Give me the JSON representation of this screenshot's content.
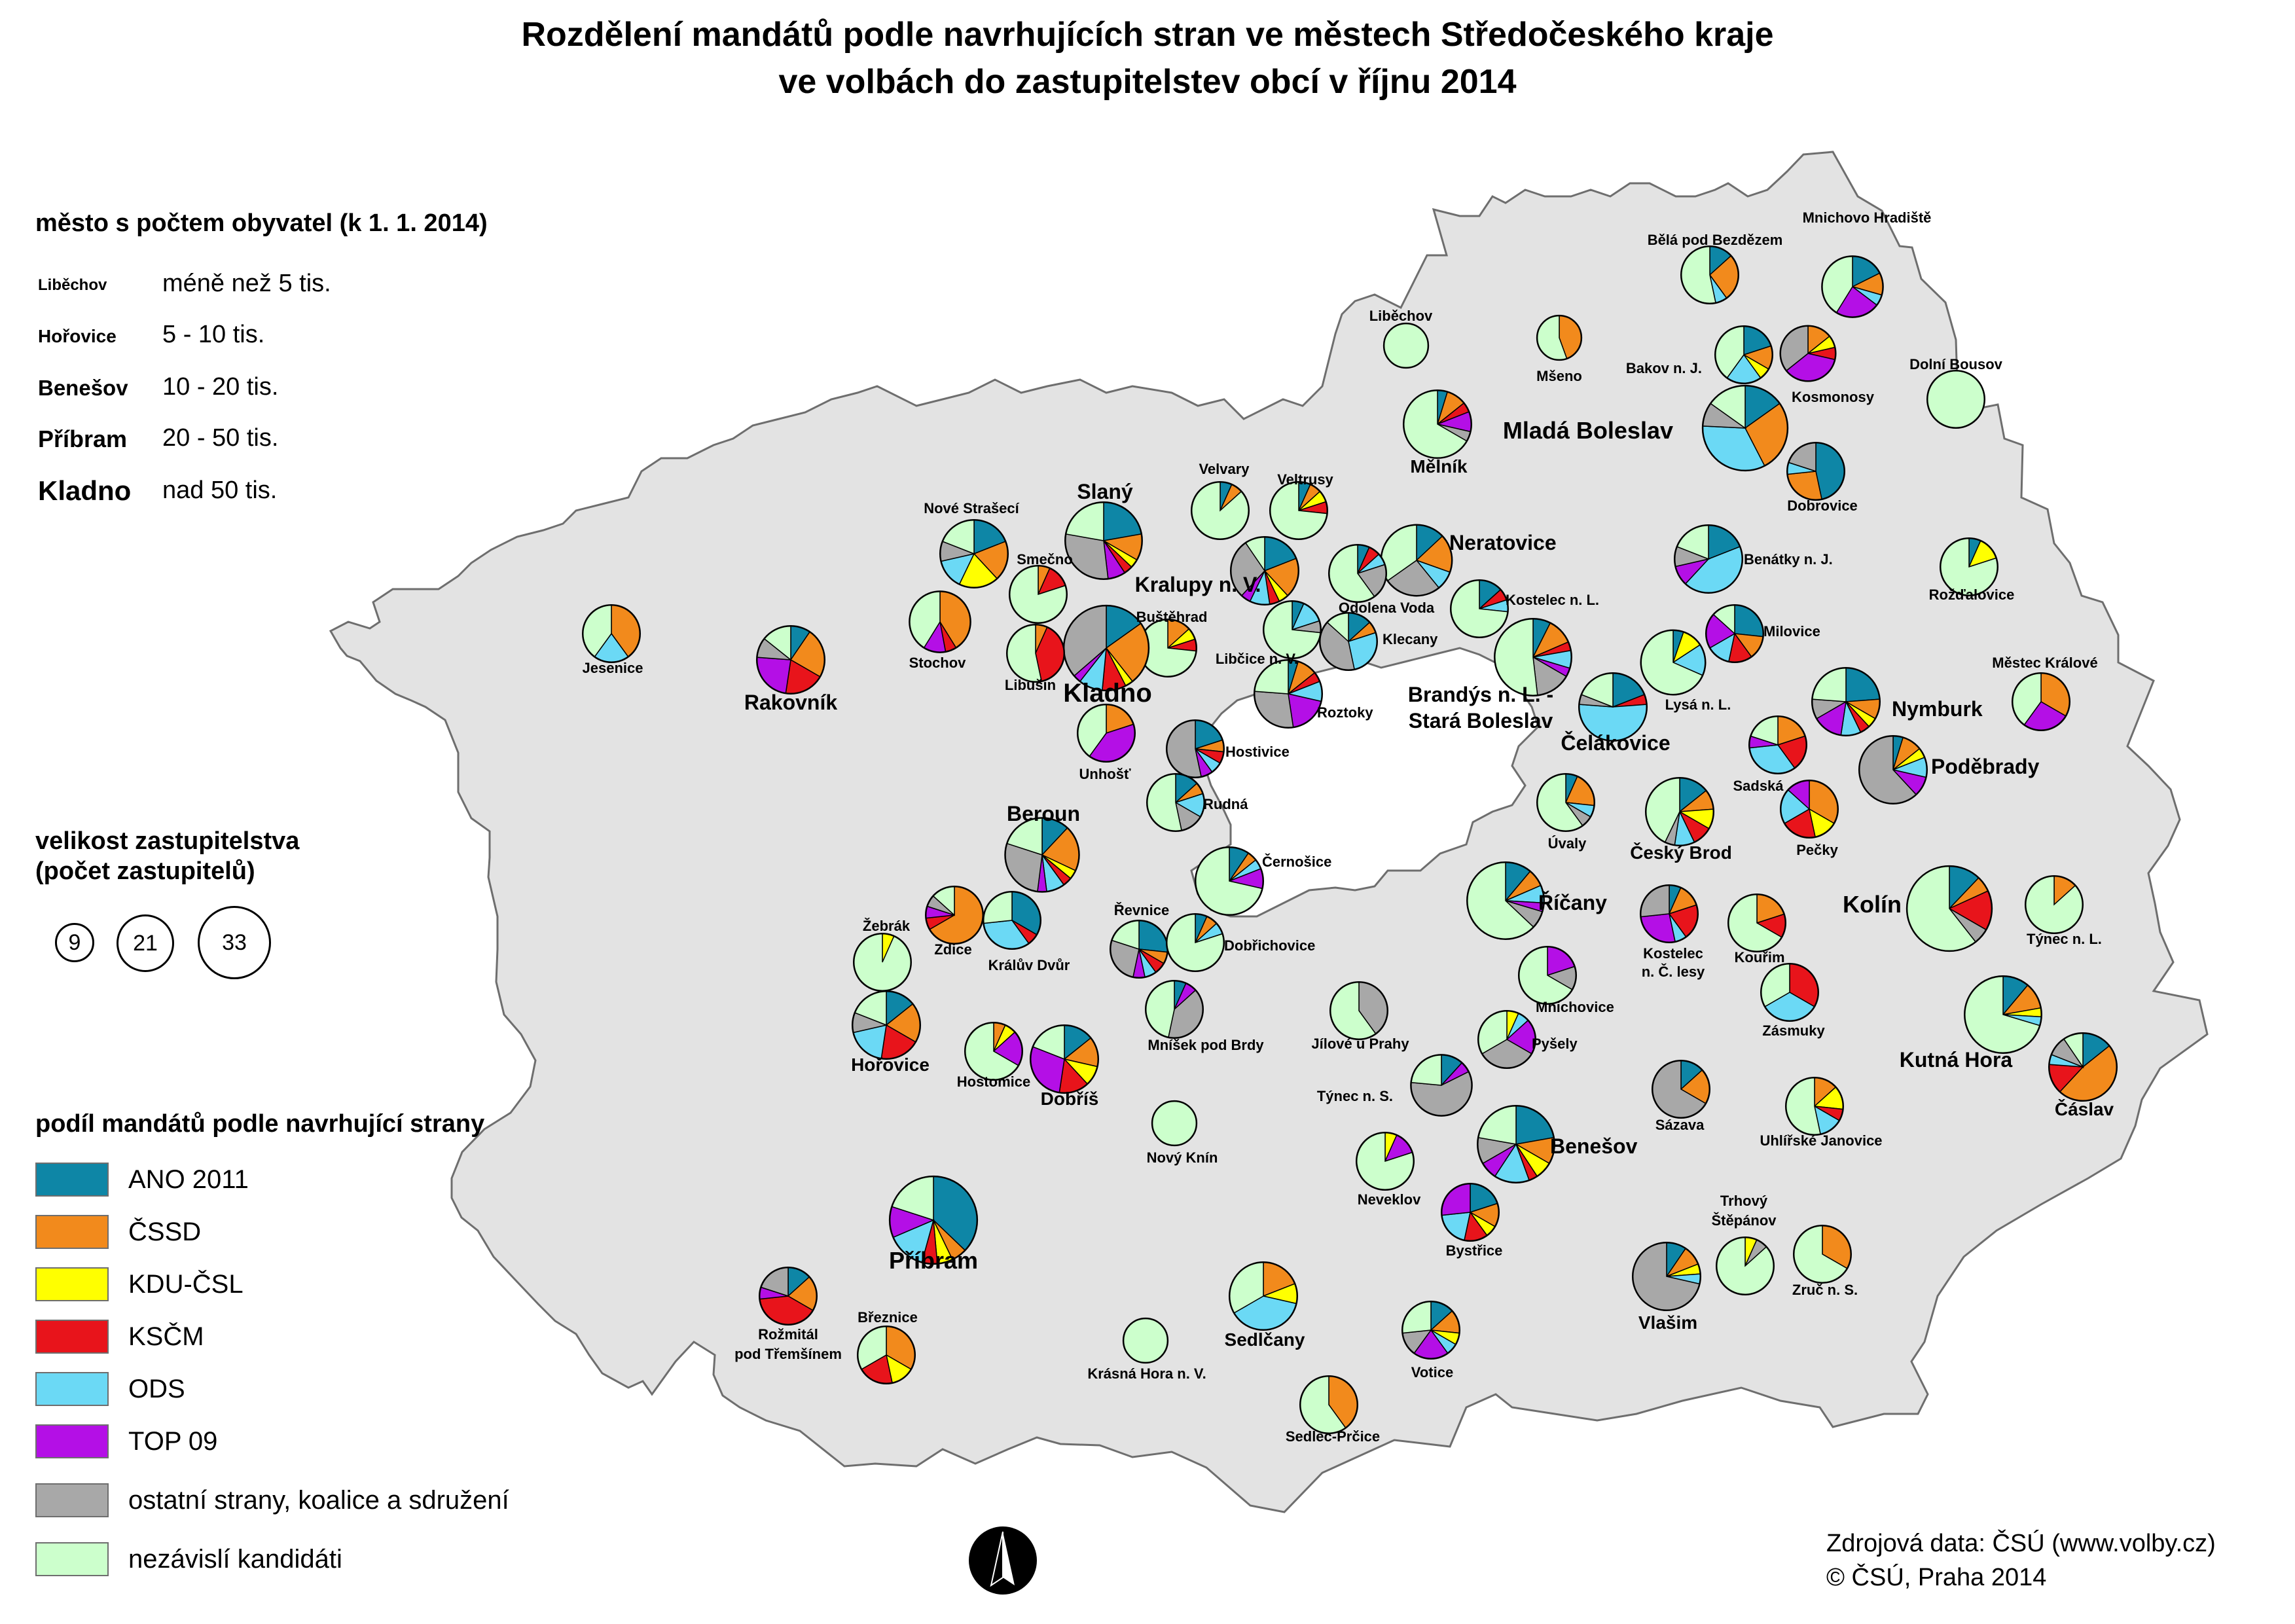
{
  "title": {
    "line1": "Rozdělení mandátů podle navrhujících stran ve městech Středočeského kraje",
    "line2": "ve volbách do zastupitelstev obcí v říjnu 2014"
  },
  "population_legend": {
    "heading": "město s počtem obyvatel (k 1. 1. 2014)",
    "tiers": [
      {
        "example": "Liběchov",
        "description": "méně než 5 tis."
      },
      {
        "example": "Hořovice",
        "description": "5 - 10 tis."
      },
      {
        "example": "Benešov",
        "description": "10 - 20 tis."
      },
      {
        "example": "Příbram",
        "description": "20 - 50 tis."
      },
      {
        "example": "Kladno",
        "description": "nad 50 tis."
      }
    ]
  },
  "council_size_legend": {
    "heading_line1": "velikost zastupitelstva",
    "heading_line2": "(počet zastupitelů)",
    "sizes": [
      "9",
      "21",
      "33"
    ]
  },
  "party_legend": {
    "heading": "podíl mandátů podle navrhující strany",
    "parties": [
      {
        "name": "ANO 2011",
        "color": "#0E86A6"
      },
      {
        "name": "ČSSD",
        "color": "#F28A1C"
      },
      {
        "name": "KDU-ČSL",
        "color": "#FFFF00"
      },
      {
        "name": "KSČM",
        "color": "#E8141B"
      },
      {
        "name": "ODS",
        "color": "#6BD9F5"
      },
      {
        "name": "TOP 09",
        "color": "#B40FE6"
      },
      {
        "name": "ostatní strany, koalice a sdružení",
        "color": "#A8A8A8"
      },
      {
        "name": "nezávislí kandidáti",
        "color": "#CCFFCC"
      }
    ]
  },
  "source": {
    "line1": "Zdrojová data: ČSÚ (www.volby.cz)",
    "line2": "© ČSÚ, Praha 2014"
  },
  "colors": {
    "region_fill": "#E3E3E3",
    "region_outline": "#6E6E6E",
    "prague_fill": "#FFFFFF"
  },
  "towns": [
    {
      "name": "Bělá pod Bezdězem",
      "tier": 1,
      "shares": [
        2,
        4,
        0,
        0,
        1,
        0,
        0,
        8
      ]
    },
    {
      "name": "Mnichovo Hradiště",
      "tier": 1,
      "shares": [
        3,
        2,
        0,
        0,
        1,
        4,
        0,
        7
      ]
    },
    {
      "name": "Liběchov",
      "tier": 1,
      "shares": [
        0,
        0,
        0,
        0,
        0,
        0,
        0,
        9
      ]
    },
    {
      "name": "Mšeno",
      "tier": 1,
      "shares": [
        0,
        4,
        0,
        0,
        0,
        0,
        0,
        5
      ]
    },
    {
      "name": "Bakov n. J.",
      "tier": 1,
      "shares": [
        3,
        2,
        1,
        0,
        3,
        0,
        0,
        6
      ]
    },
    {
      "name": "Kosmonosy",
      "tier": 1,
      "shares": [
        0,
        2,
        1,
        1,
        0,
        5,
        5,
        0
      ]
    },
    {
      "name": "Dolní Bousov",
      "tier": 1,
      "shares": [
        0,
        0,
        0,
        0,
        0,
        0,
        0,
        15
      ]
    },
    {
      "name": "Mělník",
      "tier": 2,
      "shares": [
        1,
        2,
        0,
        1,
        0,
        2,
        1,
        14
      ]
    },
    {
      "name": "Mladá Boleslav",
      "tier": 4,
      "shares": [
        5,
        9,
        0,
        0,
        11,
        0,
        3,
        5
      ]
    },
    {
      "name": "Dobrovice",
      "tier": 1,
      "shares": [
        7,
        4,
        0,
        0,
        1,
        0,
        3,
        0
      ]
    },
    {
      "name": "Nové Strašecí",
      "tier": 1,
      "shares": [
        4,
        4,
        4,
        0,
        3,
        0,
        2,
        4
      ]
    },
    {
      "name": "Slaný",
      "tier": 3,
      "shares": [
        6,
        3,
        1,
        1,
        0,
        2,
        8,
        6
      ]
    },
    {
      "name": "Velvary",
      "tier": 1,
      "shares": [
        1,
        1,
        0,
        0,
        0,
        0,
        0,
        13
      ]
    },
    {
      "name": "Veltrusy",
      "tier": 1,
      "shares": [
        1,
        1,
        1,
        1,
        0,
        0,
        0,
        11
      ]
    },
    {
      "name": "Neratovice",
      "tier": 3,
      "shares": [
        3,
        4,
        0,
        0,
        2,
        0,
        6,
        8
      ]
    },
    {
      "name": "Benátky n. J.",
      "tier": 1,
      "shares": [
        4,
        0,
        0,
        0,
        9,
        2,
        2,
        4
      ]
    },
    {
      "name": "Smečno",
      "tier": 1,
      "shares": [
        0,
        1,
        0,
        2,
        0,
        0,
        0,
        12
      ]
    },
    {
      "name": "Kralupy n. V.",
      "tier": 3,
      "shares": [
        4,
        4,
        1,
        1,
        2,
        1,
        6,
        2
      ]
    },
    {
      "name": "Odolena Voda",
      "tier": 1,
      "shares": [
        1,
        0,
        0,
        1,
        1,
        0,
        3,
        9
      ]
    },
    {
      "name": "Kostelec n. L.",
      "tier": 1,
      "shares": [
        2,
        0,
        0,
        1,
        1,
        0,
        0,
        11
      ]
    },
    {
      "name": "Rožďalovice",
      "tier": 1,
      "shares": [
        1,
        0,
        2,
        0,
        0,
        0,
        0,
        12
      ]
    },
    {
      "name": "Jesenice",
      "tier": 1,
      "shares": [
        0,
        6,
        0,
        0,
        3,
        0,
        0,
        6
      ]
    },
    {
      "name": "Rakovník",
      "tier": 3,
      "shares": [
        2,
        5,
        0,
        4,
        0,
        5,
        2,
        3
      ]
    },
    {
      "name": "Stochov",
      "tier": 1,
      "shares": [
        0,
        7,
        0,
        1,
        0,
        2,
        0,
        7
      ]
    },
    {
      "name": "Buštěhrad",
      "tier": 1,
      "shares": [
        0,
        2,
        1,
        1,
        0,
        0,
        0,
        11
      ]
    },
    {
      "name": "Kladno",
      "tier": 5,
      "shares": [
        5,
        8,
        1,
        3,
        3,
        1,
        12,
        0
      ]
    },
    {
      "name": "Libušín",
      "tier": 1,
      "shares": [
        0,
        1,
        0,
        6,
        0,
        0,
        0,
        8
      ]
    },
    {
      "name": "Libčice n. V.",
      "tier": 1,
      "shares": [
        1,
        0,
        0,
        0,
        2,
        0,
        1,
        11
      ]
    },
    {
      "name": "Klecany",
      "tier": 1,
      "shares": [
        2,
        1,
        0,
        0,
        4,
        0,
        6,
        2
      ]
    },
    {
      "name": "Milovice",
      "tier": 1,
      "shares": [
        4,
        2,
        0,
        2,
        2,
        3,
        0,
        2
      ]
    },
    {
      "name": "Městec Králové",
      "tier": 1,
      "shares": [
        0,
        5,
        0,
        0,
        0,
        4,
        0,
        6
      ]
    },
    {
      "name": "Roztoky",
      "tier": 1,
      "shares": [
        1,
        2,
        0,
        1,
        2,
        4,
        6,
        5
      ]
    },
    {
      "name": "Brandýs n. L. - Stará Boleslav",
      "tier": 3,
      "shares": [
        2,
        3,
        0,
        1,
        2,
        1,
        4,
        14
      ]
    },
    {
      "name": "Lysá n. L.",
      "tier": 1,
      "shares": [
        1,
        0,
        2,
        0,
        3,
        0,
        0,
        13
      ]
    },
    {
      "name": "Nymburk",
      "tier": 3,
      "shares": [
        5,
        2,
        1,
        1,
        2,
        3,
        2,
        5
      ]
    },
    {
      "name": "Unhošť",
      "tier": 1,
      "shares": [
        0,
        3,
        0,
        0,
        0,
        6,
        0,
        6
      ]
    },
    {
      "name": "Hostivice",
      "tier": 1,
      "shares": [
        3,
        1,
        0,
        1,
        1,
        1,
        8,
        0
      ]
    },
    {
      "name": "Čelákovice",
      "tier": 3,
      "shares": [
        4,
        0,
        0,
        1,
        11,
        0,
        1,
        4
      ]
    },
    {
      "name": "Sadská",
      "tier": 1,
      "shares": [
        0,
        3,
        0,
        3,
        5,
        1,
        0,
        3
      ]
    },
    {
      "name": "Poděbrady",
      "tier": 3,
      "shares": [
        1,
        2,
        1,
        0,
        2,
        2,
        13,
        0
      ]
    },
    {
      "name": "Rudná",
      "tier": 1,
      "shares": [
        2,
        1,
        0,
        0,
        2,
        0,
        2,
        8
      ]
    },
    {
      "name": "Úvaly",
      "tier": 1,
      "shares": [
        1,
        3,
        0,
        0,
        1,
        0,
        1,
        9
      ]
    },
    {
      "name": "Český Brod",
      "tier": 2,
      "shares": [
        3,
        2,
        2,
        2,
        2,
        0,
        1,
        9
      ]
    },
    {
      "name": "Pečky",
      "tier": 1,
      "shares": [
        0,
        5,
        2,
        3,
        3,
        2,
        0,
        0
      ]
    },
    {
      "name": "Beroun",
      "tier": 3,
      "shares": [
        3,
        5,
        1,
        1,
        2,
        1,
        7,
        5
      ]
    },
    {
      "name": "Černošice",
      "tier": 1,
      "shares": [
        2,
        1,
        0,
        0,
        1,
        2,
        0,
        15
      ]
    },
    {
      "name": "Žebrák",
      "tier": 1,
      "shares": [
        0,
        0,
        1,
        0,
        0,
        0,
        0,
        14
      ]
    },
    {
      "name": "Zdice",
      "tier": 1,
      "shares": [
        0,
        10,
        0,
        1,
        0,
        1,
        1,
        2
      ]
    },
    {
      "name": "Králův Dvůr",
      "tier": 1,
      "shares": [
        5,
        0,
        0,
        1,
        5,
        0,
        0,
        4
      ]
    },
    {
      "name": "Řevnice",
      "tier": 1,
      "shares": [
        4,
        1,
        0,
        1,
        1,
        1,
        4,
        3
      ]
    },
    {
      "name": "Dobřichovice",
      "tier": 1,
      "shares": [
        1,
        1,
        0,
        0,
        1,
        0,
        0,
        12
      ]
    },
    {
      "name": "Říčany",
      "tier": 3,
      "shares": [
        3,
        2,
        0,
        0,
        2,
        1,
        2,
        17
      ]
    },
    {
      "name": "Kostelec n. Č. lesy",
      "tier": 1,
      "shares": [
        1,
        2,
        0,
        3,
        1,
        4,
        4,
        0
      ]
    },
    {
      "name": "Kouřim",
      "tier": 1,
      "shares": [
        0,
        3,
        0,
        2,
        0,
        0,
        0,
        10
      ]
    },
    {
      "name": "Kolín",
      "tier": 4,
      "shares": [
        4,
        2,
        0,
        5,
        0,
        0,
        2,
        20
      ]
    },
    {
      "name": "Týnec n. L.",
      "tier": 1,
      "shares": [
        0,
        2,
        0,
        0,
        0,
        0,
        0,
        13
      ]
    },
    {
      "name": "Mnichovice",
      "tier": 1,
      "shares": [
        0,
        0,
        0,
        0,
        0,
        3,
        2,
        10
      ]
    },
    {
      "name": "Zásmuky",
      "tier": 1,
      "shares": [
        0,
        0,
        0,
        5,
        5,
        0,
        0,
        5
      ]
    },
    {
      "name": "Hořovice",
      "tier": 2,
      "shares": [
        3,
        4,
        0,
        4,
        4,
        0,
        2,
        4
      ]
    },
    {
      "name": "Hostomice",
      "tier": 1,
      "shares": [
        0,
        1,
        1,
        0,
        0,
        3,
        0,
        10
      ]
    },
    {
      "name": "Dobříš",
      "tier": 2,
      "shares": [
        3,
        3,
        2,
        3,
        0,
        6,
        0,
        4
      ]
    },
    {
      "name": "Mníšek pod Brdy",
      "tier": 1,
      "shares": [
        1,
        0,
        0,
        0,
        0,
        1,
        6,
        7
      ]
    },
    {
      "name": "Jílové u Prahy",
      "tier": 1,
      "shares": [
        0,
        0,
        0,
        0,
        0,
        0,
        6,
        9
      ]
    },
    {
      "name": "Pyšely",
      "tier": 1,
      "shares": [
        0,
        0,
        1,
        0,
        1,
        3,
        5,
        5
      ]
    },
    {
      "name": "Týnec n. S.",
      "tier": 1,
      "shares": [
        2,
        0,
        0,
        0,
        0,
        1,
        10,
        4
      ]
    },
    {
      "name": "Sázava",
      "tier": 1,
      "shares": [
        2,
        3,
        0,
        0,
        0,
        0,
        10,
        0
      ]
    },
    {
      "name": "Uhlířské Janovice",
      "tier": 1,
      "shares": [
        0,
        2,
        2,
        1,
        2,
        0,
        0,
        8
      ]
    },
    {
      "name": "Kutná Hora",
      "tier": 3,
      "shares": [
        3,
        3,
        1,
        0,
        1,
        0,
        0,
        19
      ]
    },
    {
      "name": "Čáslav",
      "tier": 2,
      "shares": [
        3,
        10,
        0,
        3,
        1,
        0,
        2,
        2
      ]
    },
    {
      "name": "Nový Knín",
      "tier": 1,
      "shares": [
        0,
        0,
        0,
        0,
        0,
        0,
        0,
        9
      ]
    },
    {
      "name": "Benešov",
      "tier": 3,
      "shares": [
        6,
        3,
        2,
        1,
        4,
        2,
        3,
        6
      ]
    },
    {
      "name": "Neveklov",
      "tier": 1,
      "shares": [
        0,
        0,
        1,
        0,
        0,
        2,
        0,
        12
      ]
    },
    {
      "name": "Bystřice",
      "tier": 1,
      "shares": [
        3,
        2,
        1,
        2,
        3,
        4,
        0,
        0
      ]
    },
    {
      "name": "Příbram",
      "tier": 4,
      "shares": [
        13,
        2,
        2,
        2,
        5,
        4,
        0,
        7
      ]
    },
    {
      "name": "Rožmitál pod Třemšínem",
      "tier": 1,
      "shares": [
        2,
        3,
        0,
        6,
        0,
        1,
        3,
        0
      ]
    },
    {
      "name": "Březnice",
      "tier": 1,
      "shares": [
        0,
        5,
        2,
        3,
        0,
        0,
        0,
        5
      ]
    },
    {
      "name": "Krásná Hora n. V.",
      "tier": 1,
      "shares": [
        0,
        0,
        0,
        0,
        0,
        0,
        0,
        9
      ]
    },
    {
      "name": "Sedlčany",
      "tier": 2,
      "shares": [
        0,
        4,
        2,
        0,
        8,
        0,
        0,
        7
      ]
    },
    {
      "name": "Votice",
      "tier": 1,
      "shares": [
        2,
        2,
        1,
        0,
        1,
        3,
        2,
        4
      ]
    },
    {
      "name": "Vlašim",
      "tier": 2,
      "shares": [
        2,
        2,
        1,
        0,
        1,
        0,
        15,
        0
      ]
    },
    {
      "name": "Trhový Štěpánov",
      "tier": 1,
      "shares": [
        0,
        0,
        1,
        0,
        0,
        0,
        1,
        13
      ]
    },
    {
      "name": "Zruč n. S.",
      "tier": 1,
      "shares": [
        0,
        5,
        0,
        0,
        0,
        0,
        0,
        10
      ]
    },
    {
      "name": "Sedlec-Prčice",
      "tier": 1,
      "shares": [
        0,
        6,
        0,
        0,
        0,
        0,
        0,
        9
      ]
    }
  ]
}
